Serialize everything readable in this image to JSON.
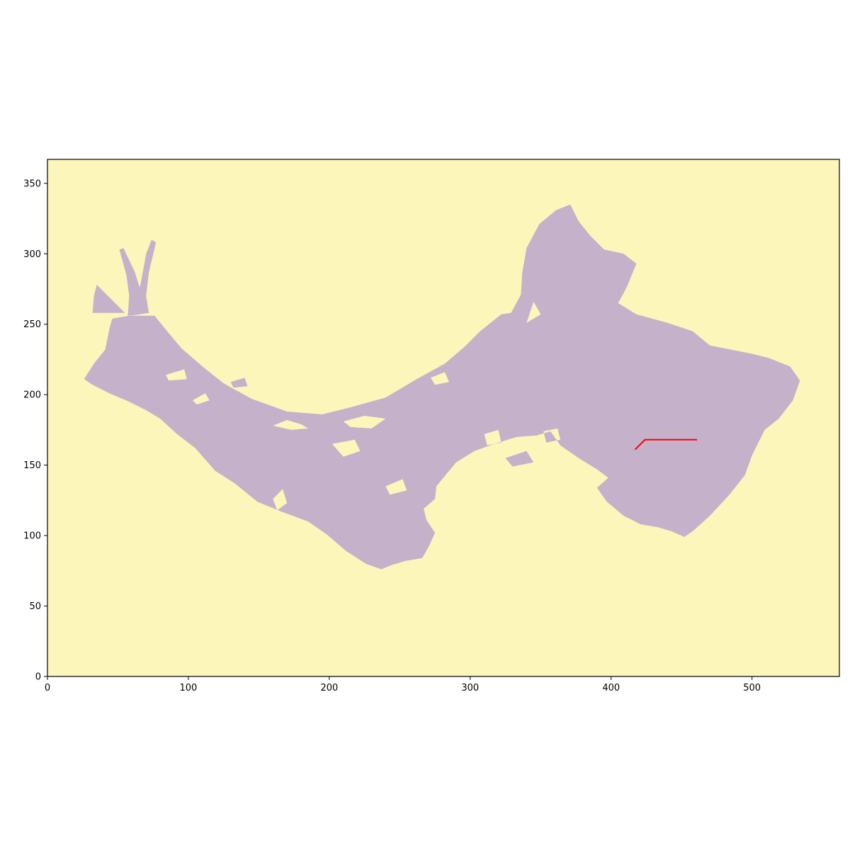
{
  "chart_data": {
    "type": "heatmap",
    "title": "",
    "xlabel": "",
    "ylabel": "",
    "xlim": [
      0,
      562
    ],
    "ylim": [
      0,
      367
    ],
    "x_ticks": [
      0,
      100,
      200,
      300,
      400,
      500
    ],
    "y_ticks": [
      0,
      50,
      100,
      150,
      200,
      250,
      300,
      350
    ],
    "grid": false,
    "legend": "none",
    "colors": {
      "background": "#fcf6bb",
      "region": "#c5b1ca",
      "route": "#ff0000",
      "axis": "#000000"
    },
    "region": {
      "name": "",
      "outline": [
        [
          26,
          211
        ],
        [
          33,
          222
        ],
        [
          41,
          232
        ],
        [
          44,
          247
        ],
        [
          46,
          254
        ],
        [
          58,
          256
        ],
        [
          76,
          256
        ],
        [
          85,
          245
        ],
        [
          95,
          233
        ],
        [
          110,
          220
        ],
        [
          125,
          208
        ],
        [
          145,
          197
        ],
        [
          170,
          188
        ],
        [
          195,
          186
        ],
        [
          215,
          191
        ],
        [
          240,
          198
        ],
        [
          262,
          211
        ],
        [
          282,
          222
        ],
        [
          296,
          234
        ],
        [
          307,
          245
        ],
        [
          322,
          257
        ],
        [
          329,
          258
        ],
        [
          336,
          271
        ],
        [
          337,
          287
        ],
        [
          340,
          304
        ],
        [
          349,
          321
        ],
        [
          361,
          331
        ],
        [
          371,
          335
        ],
        [
          377,
          323
        ],
        [
          385,
          313
        ],
        [
          395,
          303
        ],
        [
          409,
          300
        ],
        [
          418,
          293
        ],
        [
          411,
          276
        ],
        [
          405,
          265
        ],
        [
          418,
          257
        ],
        [
          440,
          251
        ],
        [
          458,
          245
        ],
        [
          470,
          235
        ],
        [
          485,
          232
        ],
        [
          500,
          229
        ],
        [
          512,
          226
        ],
        [
          527,
          220
        ],
        [
          534,
          210
        ],
        [
          529,
          196
        ],
        [
          519,
          183
        ],
        [
          509,
          175
        ],
        [
          500,
          157
        ],
        [
          495,
          143
        ],
        [
          484,
          129
        ],
        [
          470,
          114
        ],
        [
          459,
          104
        ],
        [
          452,
          99
        ],
        [
          443,
          103
        ],
        [
          433,
          106
        ],
        [
          421,
          108
        ],
        [
          409,
          114
        ],
        [
          397,
          124
        ],
        [
          390,
          134
        ],
        [
          398,
          141
        ],
        [
          390,
          147
        ],
        [
          377,
          155
        ],
        [
          364,
          164
        ],
        [
          357,
          174
        ],
        [
          347,
          171
        ],
        [
          333,
          170
        ],
        [
          317,
          165
        ],
        [
          303,
          160
        ],
        [
          290,
          152
        ],
        [
          276,
          135
        ],
        [
          275,
          126
        ],
        [
          267,
          119
        ],
        [
          269,
          111
        ],
        [
          275,
          102
        ],
        [
          271,
          93
        ],
        [
          266,
          84
        ],
        [
          254,
          82
        ],
        [
          244,
          79
        ],
        [
          237,
          76
        ],
        [
          226,
          80
        ],
        [
          212,
          89
        ],
        [
          198,
          101
        ],
        [
          185,
          110
        ],
        [
          166,
          117
        ],
        [
          149,
          124
        ],
        [
          133,
          137
        ],
        [
          119,
          146
        ],
        [
          105,
          162
        ],
        [
          92,
          172
        ],
        [
          80,
          183
        ],
        [
          70,
          189
        ],
        [
          58,
          195
        ],
        [
          44,
          201
        ],
        [
          32,
          207
        ]
      ],
      "spikes": [
        [
          [
            57,
            256
          ],
          [
            58,
            270
          ],
          [
            56,
            285
          ],
          [
            51,
            303
          ],
          [
            54,
            304
          ],
          [
            62,
            287
          ],
          [
            68,
            268
          ],
          [
            70,
            258
          ]
        ],
        [
          [
            59,
            256
          ],
          [
            66,
            278
          ],
          [
            70,
            300
          ],
          [
            74,
            310
          ],
          [
            77,
            308
          ],
          [
            72,
            287
          ],
          [
            70,
            270
          ],
          [
            72,
            258
          ]
        ],
        [
          [
            32,
            258
          ],
          [
            33,
            270
          ],
          [
            35,
            278
          ],
          [
            41,
            272
          ],
          [
            49,
            264
          ],
          [
            55,
            258
          ]
        ]
      ],
      "holes": [
        [
          [
            170,
            182
          ],
          [
            180,
            179
          ],
          [
            185,
            176
          ],
          [
            173,
            175
          ],
          [
            160,
            178
          ]
        ],
        [
          [
            210,
            181
          ],
          [
            225,
            185
          ],
          [
            240,
            183
          ],
          [
            230,
            176
          ],
          [
            215,
            177
          ]
        ],
        [
          [
            202,
            165
          ],
          [
            218,
            168
          ],
          [
            222,
            160
          ],
          [
            210,
            156
          ]
        ],
        [
          [
            103,
            196
          ],
          [
            112,
            201
          ],
          [
            115,
            196
          ],
          [
            106,
            193
          ]
        ],
        [
          [
            130,
            209
          ],
          [
            140,
            212
          ],
          [
            142,
            206
          ],
          [
            132,
            205
          ]
        ],
        [
          [
            84,
            214
          ],
          [
            97,
            218
          ],
          [
            99,
            211
          ],
          [
            86,
            210
          ]
        ],
        [
          [
            340,
            251
          ],
          [
            345,
            266
          ],
          [
            350,
            257
          ]
        ],
        [
          [
            272,
            212
          ],
          [
            282,
            216
          ],
          [
            285,
            209
          ],
          [
            275,
            207
          ]
        ],
        [
          [
            352,
            174
          ],
          [
            362,
            176
          ],
          [
            364,
            168
          ],
          [
            354,
            166
          ]
        ],
        [
          [
            325,
            155
          ],
          [
            340,
            160
          ],
          [
            345,
            152
          ],
          [
            330,
            149
          ]
        ],
        [
          [
            240,
            135
          ],
          [
            252,
            140
          ],
          [
            255,
            132
          ],
          [
            243,
            129
          ]
        ],
        [
          [
            160,
            126
          ],
          [
            167,
            133
          ],
          [
            170,
            123
          ],
          [
            163,
            118
          ]
        ],
        [
          [
            310,
            172
          ],
          [
            320,
            175
          ],
          [
            322,
            166
          ],
          [
            312,
            164
          ]
        ]
      ]
    },
    "series": [
      {
        "values": [
          [
            417,
            161
          ],
          [
            424,
            168
          ],
          [
            461,
            168
          ]
        ]
      }
    ]
  }
}
